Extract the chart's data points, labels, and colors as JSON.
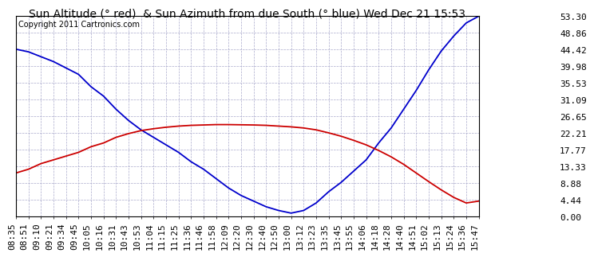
{
  "title": "Sun Altitude (° red)  & Sun Azimuth from due South (° blue) Wed Dec 21 15:53",
  "copyright": "Copyright 2011 Cartronics.com",
  "y_ticks": [
    0.0,
    4.44,
    8.88,
    13.33,
    17.77,
    22.21,
    26.65,
    31.09,
    35.53,
    39.98,
    44.42,
    48.86,
    53.3
  ],
  "x_labels": [
    "08:35",
    "08:51",
    "09:10",
    "09:21",
    "09:34",
    "09:45",
    "10:05",
    "10:16",
    "10:31",
    "10:43",
    "10:53",
    "11:04",
    "11:15",
    "11:25",
    "11:36",
    "11:46",
    "11:58",
    "12:09",
    "12:20",
    "12:30",
    "12:40",
    "12:50",
    "13:00",
    "13:12",
    "13:23",
    "13:35",
    "13:45",
    "13:55",
    "14:06",
    "14:18",
    "14:28",
    "14:40",
    "14:51",
    "15:02",
    "15:13",
    "15:24",
    "15:36",
    "15:47"
  ],
  "blue_y": [
    44.5,
    43.8,
    42.5,
    41.2,
    39.5,
    37.8,
    34.5,
    32.0,
    28.5,
    25.5,
    23.0,
    21.0,
    19.0,
    17.0,
    14.5,
    12.5,
    10.0,
    7.5,
    5.5,
    4.0,
    2.5,
    1.5,
    0.8,
    1.5,
    3.5,
    6.5,
    9.0,
    12.0,
    15.0,
    19.5,
    23.5,
    28.5,
    33.5,
    39.0,
    44.0,
    48.0,
    51.5,
    53.3
  ],
  "red_y": [
    11.5,
    12.5,
    14.0,
    15.0,
    16.0,
    17.0,
    18.5,
    19.5,
    21.0,
    22.0,
    22.8,
    23.3,
    23.7,
    24.0,
    24.2,
    24.3,
    24.4,
    24.4,
    24.35,
    24.3,
    24.2,
    24.0,
    23.8,
    23.5,
    23.0,
    22.2,
    21.3,
    20.2,
    19.0,
    17.5,
    15.8,
    13.8,
    11.5,
    9.2,
    7.0,
    5.0,
    3.5,
    4.0
  ],
  "line_blue": "#0000cc",
  "line_red": "#cc0000",
  "bg_color": "#ffffff",
  "plot_bg": "#ffffff",
  "grid_color": "#aaaacc",
  "title_fontsize": 10,
  "tick_fontsize": 8,
  "copyright_fontsize": 7
}
